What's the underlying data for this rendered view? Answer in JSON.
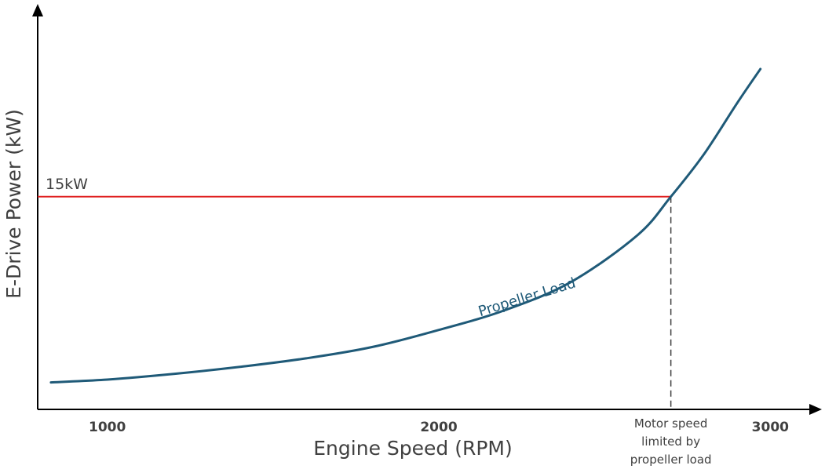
{
  "chart_data": {
    "type": "line",
    "title": "",
    "xlabel": "Engine Speed (RPM)",
    "ylabel": "E-Drive Power (kW)",
    "x_ticks": [
      "1000",
      "2000",
      "3000"
    ],
    "xlim": [
      790,
      3120
    ],
    "ylim": [
      0,
      24
    ],
    "grid": false,
    "series": [
      {
        "name": "Propeller Load",
        "x": [
          830,
          1000,
          1200,
          1400,
          1600,
          1800,
          2000,
          2200,
          2400,
          2600,
          2700,
          2800,
          2900,
          2970
        ],
        "y": [
          1.9,
          2.1,
          2.5,
          3.0,
          3.6,
          4.4,
          5.6,
          7.0,
          9.0,
          12.3,
          15.0,
          18.0,
          21.6,
          24.0
        ],
        "color": "#1f5a78"
      }
    ],
    "reference_line": {
      "label": "15kW",
      "y": 15,
      "color": "#e02020"
    },
    "annotation": {
      "x": 2700,
      "lines": [
        "Motor speed",
        "limited by",
        "propeller load"
      ]
    }
  }
}
